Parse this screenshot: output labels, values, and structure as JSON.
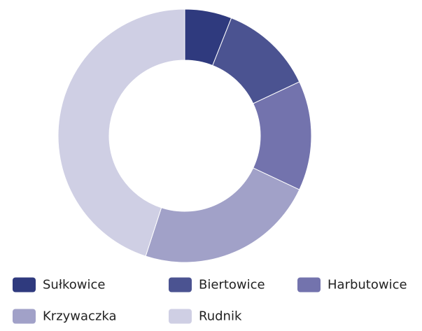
{
  "chart_data": {
    "type": "pie",
    "subtype": "donut",
    "title": "",
    "legend_position": "bottom",
    "slices": [
      {
        "label": "Sułkowice",
        "value": 6,
        "color": "#2f3a7e"
      },
      {
        "label": "Biertowice",
        "value": 12,
        "color": "#4b5391"
      },
      {
        "label": "Harbutowice",
        "value": 14,
        "color": "#7373ad"
      },
      {
        "label": "Krzywaczka",
        "value": 23,
        "color": "#a1a1c8"
      },
      {
        "label": "Rudnik",
        "value": 45,
        "color": "#cfcfe4"
      }
    ]
  }
}
